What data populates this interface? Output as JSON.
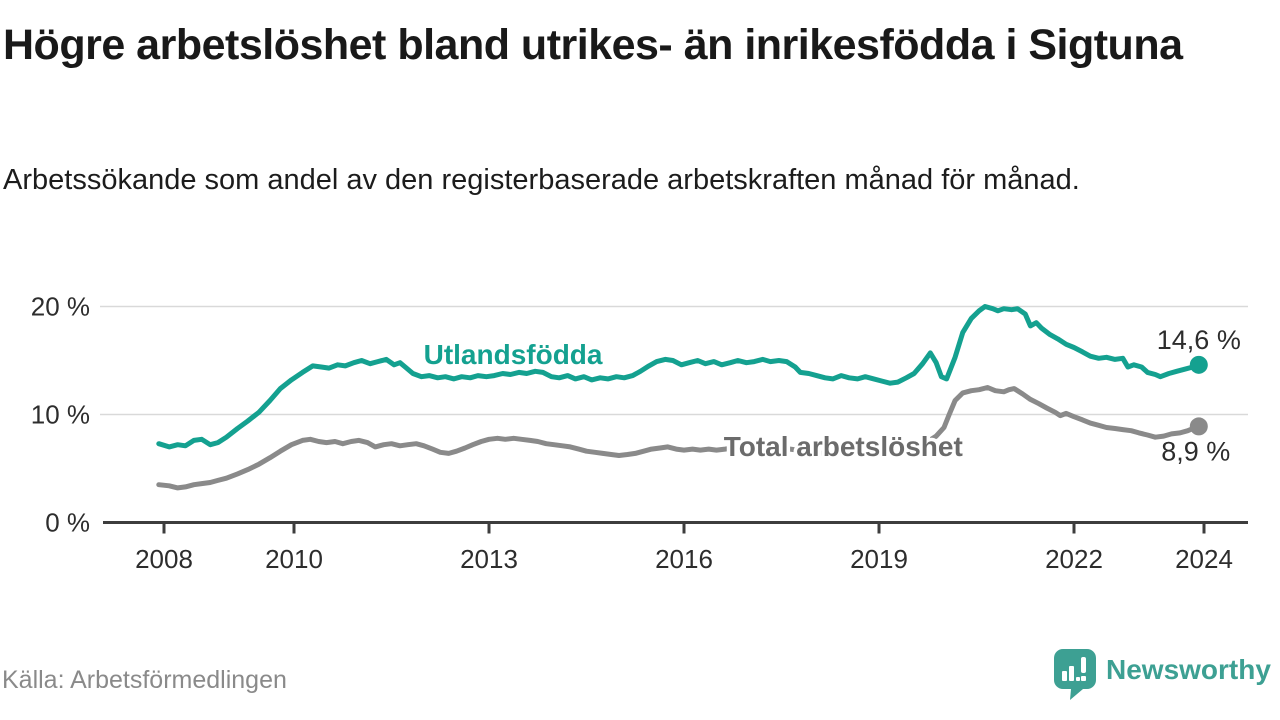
{
  "footer": {
    "brand": "Newsworthy"
  },
  "colors": {
    "accent_teal": "#14a190",
    "series_gray": "#8a8a8a",
    "brand_teal": "#3da093",
    "axis": "#3d3d3d",
    "grid": "#d9d9d9",
    "text_dark": "#2d2d2d"
  },
  "chart_data": {
    "type": "line",
    "title": "Högre arbetslöshet bland utrikes- än inrikesfödda i Sigtuna",
    "subtitle": "Arbetssökande som andel av den registerbaserade arbetskraften månad för månad.",
    "source": "Källa: Arbetsförmedlingen",
    "legend_position": "inline-labels",
    "x_axis": {
      "range": [
        2007.6,
        2024.8
      ],
      "grid": false,
      "ticks": [
        {
          "value": 2008,
          "label": "2008"
        },
        {
          "value": 2010,
          "label": "2010"
        },
        {
          "value": 2013,
          "label": "2013"
        },
        {
          "value": 2016,
          "label": "2016"
        },
        {
          "value": 2019,
          "label": "2019"
        },
        {
          "value": 2022,
          "label": "2022"
        },
        {
          "value": 2024,
          "label": "2024"
        }
      ]
    },
    "y_axis": {
      "range": [
        0,
        21.8
      ],
      "grid": true,
      "unit": "%",
      "ticks": [
        {
          "value": 0,
          "label": "0 %"
        },
        {
          "value": 10,
          "label": "10 %"
        },
        {
          "value": 20,
          "label": "20 %"
        }
      ]
    },
    "series": [
      {
        "name": "Utlandsfödda",
        "color": "#14a190",
        "label_color": "#14a190",
        "line_width": 5,
        "end_dot": true,
        "end_label": "14,6 %",
        "end_value": 14.6,
        "end_label_position": "above",
        "label_anchor": {
          "year": 2013.37,
          "value": 15.6
        },
        "points": [
          [
            2007.92,
            7.3
          ],
          [
            2008.08,
            7.0
          ],
          [
            2008.21,
            7.2
          ],
          [
            2008.33,
            7.1
          ],
          [
            2008.46,
            7.6
          ],
          [
            2008.58,
            7.7
          ],
          [
            2008.71,
            7.2
          ],
          [
            2008.83,
            7.4
          ],
          [
            2008.96,
            7.9
          ],
          [
            2009.13,
            8.7
          ],
          [
            2009.29,
            9.4
          ],
          [
            2009.46,
            10.2
          ],
          [
            2009.63,
            11.3
          ],
          [
            2009.79,
            12.4
          ],
          [
            2009.96,
            13.2
          ],
          [
            2010.13,
            13.9
          ],
          [
            2010.29,
            14.5
          ],
          [
            2010.42,
            14.4
          ],
          [
            2010.54,
            14.3
          ],
          [
            2010.67,
            14.6
          ],
          [
            2010.79,
            14.5
          ],
          [
            2010.92,
            14.8
          ],
          [
            2011.04,
            15.0
          ],
          [
            2011.17,
            14.7
          ],
          [
            2011.29,
            14.9
          ],
          [
            2011.42,
            15.1
          ],
          [
            2011.54,
            14.6
          ],
          [
            2011.63,
            14.8
          ],
          [
            2011.71,
            14.4
          ],
          [
            2011.83,
            13.8
          ],
          [
            2011.96,
            13.5
          ],
          [
            2012.08,
            13.6
          ],
          [
            2012.21,
            13.4
          ],
          [
            2012.33,
            13.5
          ],
          [
            2012.46,
            13.3
          ],
          [
            2012.58,
            13.5
          ],
          [
            2012.71,
            13.4
          ],
          [
            2012.83,
            13.6
          ],
          [
            2012.96,
            13.5
          ],
          [
            2013.08,
            13.6
          ],
          [
            2013.21,
            13.8
          ],
          [
            2013.33,
            13.7
          ],
          [
            2013.46,
            13.9
          ],
          [
            2013.58,
            13.8
          ],
          [
            2013.71,
            14.0
          ],
          [
            2013.83,
            13.9
          ],
          [
            2013.96,
            13.5
          ],
          [
            2014.08,
            13.4
          ],
          [
            2014.21,
            13.6
          ],
          [
            2014.33,
            13.3
          ],
          [
            2014.46,
            13.5
          ],
          [
            2014.58,
            13.2
          ],
          [
            2014.71,
            13.4
          ],
          [
            2014.83,
            13.3
          ],
          [
            2014.96,
            13.5
          ],
          [
            2015.08,
            13.4
          ],
          [
            2015.21,
            13.6
          ],
          [
            2015.33,
            14.0
          ],
          [
            2015.46,
            14.5
          ],
          [
            2015.58,
            14.9
          ],
          [
            2015.71,
            15.1
          ],
          [
            2015.83,
            15.0
          ],
          [
            2015.96,
            14.6
          ],
          [
            2016.08,
            14.8
          ],
          [
            2016.21,
            15.0
          ],
          [
            2016.33,
            14.7
          ],
          [
            2016.46,
            14.9
          ],
          [
            2016.58,
            14.6
          ],
          [
            2016.71,
            14.8
          ],
          [
            2016.83,
            15.0
          ],
          [
            2016.96,
            14.8
          ],
          [
            2017.08,
            14.9
          ],
          [
            2017.21,
            15.1
          ],
          [
            2017.33,
            14.9
          ],
          [
            2017.46,
            15.0
          ],
          [
            2017.58,
            14.9
          ],
          [
            2017.71,
            14.4
          ],
          [
            2017.79,
            13.9
          ],
          [
            2017.92,
            13.8
          ],
          [
            2018.04,
            13.6
          ],
          [
            2018.17,
            13.4
          ],
          [
            2018.29,
            13.3
          ],
          [
            2018.42,
            13.6
          ],
          [
            2018.54,
            13.4
          ],
          [
            2018.67,
            13.3
          ],
          [
            2018.79,
            13.5
          ],
          [
            2018.92,
            13.3
          ],
          [
            2019.04,
            13.1
          ],
          [
            2019.17,
            12.9
          ],
          [
            2019.29,
            13.0
          ],
          [
            2019.42,
            13.4
          ],
          [
            2019.54,
            13.8
          ],
          [
            2019.67,
            14.7
          ],
          [
            2019.79,
            15.7
          ],
          [
            2019.88,
            14.8
          ],
          [
            2019.96,
            13.5
          ],
          [
            2020.04,
            13.3
          ],
          [
            2020.17,
            15.3
          ],
          [
            2020.29,
            17.6
          ],
          [
            2020.42,
            18.9
          ],
          [
            2020.54,
            19.6
          ],
          [
            2020.63,
            20.0
          ],
          [
            2020.75,
            19.8
          ],
          [
            2020.83,
            19.6
          ],
          [
            2020.92,
            19.8
          ],
          [
            2021.04,
            19.7
          ],
          [
            2021.13,
            19.8
          ],
          [
            2021.25,
            19.3
          ],
          [
            2021.33,
            18.2
          ],
          [
            2021.42,
            18.5
          ],
          [
            2021.5,
            18.0
          ],
          [
            2021.63,
            17.4
          ],
          [
            2021.75,
            17.0
          ],
          [
            2021.88,
            16.5
          ],
          [
            2022.0,
            16.2
          ],
          [
            2022.13,
            15.8
          ],
          [
            2022.25,
            15.4
          ],
          [
            2022.38,
            15.2
          ],
          [
            2022.5,
            15.3
          ],
          [
            2022.63,
            15.1
          ],
          [
            2022.75,
            15.2
          ],
          [
            2022.83,
            14.4
          ],
          [
            2022.92,
            14.6
          ],
          [
            2023.04,
            14.4
          ],
          [
            2023.13,
            13.9
          ],
          [
            2023.25,
            13.7
          ],
          [
            2023.33,
            13.5
          ],
          [
            2023.46,
            13.8
          ],
          [
            2023.58,
            14.0
          ],
          [
            2023.71,
            14.2
          ],
          [
            2023.83,
            14.4
          ],
          [
            2023.92,
            14.6
          ]
        ]
      },
      {
        "name": "Total arbetslöshet",
        "color": "#8a8a8a",
        "label_color": "#6b6b6b",
        "line_width": 5,
        "end_dot": true,
        "end_label": "8,9 %",
        "end_value": 8.9,
        "end_label_position": "below",
        "label_anchor": {
          "year": 2018.45,
          "value": 7.08
        },
        "points": [
          [
            2007.92,
            3.5
          ],
          [
            2008.08,
            3.4
          ],
          [
            2008.21,
            3.2
          ],
          [
            2008.33,
            3.3
          ],
          [
            2008.46,
            3.5
          ],
          [
            2008.58,
            3.6
          ],
          [
            2008.71,
            3.7
          ],
          [
            2008.83,
            3.9
          ],
          [
            2008.96,
            4.1
          ],
          [
            2009.13,
            4.5
          ],
          [
            2009.29,
            4.9
          ],
          [
            2009.46,
            5.4
          ],
          [
            2009.63,
            6.0
          ],
          [
            2009.79,
            6.6
          ],
          [
            2009.96,
            7.2
          ],
          [
            2010.13,
            7.6
          ],
          [
            2010.25,
            7.7
          ],
          [
            2010.38,
            7.5
          ],
          [
            2010.5,
            7.4
          ],
          [
            2010.63,
            7.5
          ],
          [
            2010.75,
            7.3
          ],
          [
            2010.88,
            7.5
          ],
          [
            2011.0,
            7.6
          ],
          [
            2011.13,
            7.4
          ],
          [
            2011.25,
            7.0
          ],
          [
            2011.38,
            7.2
          ],
          [
            2011.5,
            7.3
          ],
          [
            2011.63,
            7.1
          ],
          [
            2011.75,
            7.2
          ],
          [
            2011.88,
            7.3
          ],
          [
            2012.0,
            7.1
          ],
          [
            2012.13,
            6.8
          ],
          [
            2012.25,
            6.5
          ],
          [
            2012.38,
            6.4
          ],
          [
            2012.5,
            6.6
          ],
          [
            2012.63,
            6.9
          ],
          [
            2012.75,
            7.2
          ],
          [
            2012.88,
            7.5
          ],
          [
            2013.0,
            7.7
          ],
          [
            2013.13,
            7.8
          ],
          [
            2013.25,
            7.7
          ],
          [
            2013.38,
            7.8
          ],
          [
            2013.5,
            7.7
          ],
          [
            2013.63,
            7.6
          ],
          [
            2013.75,
            7.5
          ],
          [
            2013.88,
            7.3
          ],
          [
            2014.0,
            7.2
          ],
          [
            2014.13,
            7.1
          ],
          [
            2014.25,
            7.0
          ],
          [
            2014.38,
            6.8
          ],
          [
            2014.5,
            6.6
          ],
          [
            2014.63,
            6.5
          ],
          [
            2014.75,
            6.4
          ],
          [
            2014.88,
            6.3
          ],
          [
            2015.0,
            6.2
          ],
          [
            2015.13,
            6.3
          ],
          [
            2015.25,
            6.4
          ],
          [
            2015.38,
            6.6
          ],
          [
            2015.5,
            6.8
          ],
          [
            2015.63,
            6.9
          ],
          [
            2015.75,
            7.0
          ],
          [
            2015.88,
            6.8
          ],
          [
            2016.0,
            6.7
          ],
          [
            2016.13,
            6.8
          ],
          [
            2016.25,
            6.7
          ],
          [
            2016.38,
            6.8
          ],
          [
            2016.5,
            6.7
          ],
          [
            2016.63,
            6.8
          ],
          [
            2016.75,
            6.9
          ],
          [
            2016.88,
            6.8
          ],
          [
            2017.0,
            6.9
          ],
          [
            2017.13,
            7.0
          ],
          [
            2017.25,
            6.9
          ],
          [
            2017.38,
            7.0
          ],
          [
            2017.5,
            6.9
          ],
          [
            2017.63,
            6.8
          ],
          [
            2017.75,
            6.7
          ],
          [
            2017.88,
            6.6
          ],
          [
            2018.0,
            6.5
          ],
          [
            2018.13,
            6.4
          ],
          [
            2018.25,
            6.5
          ],
          [
            2018.38,
            6.4
          ],
          [
            2018.5,
            6.5
          ],
          [
            2018.63,
            6.4
          ],
          [
            2018.75,
            6.5
          ],
          [
            2018.88,
            6.6
          ],
          [
            2019.0,
            6.5
          ],
          [
            2019.13,
            6.6
          ],
          [
            2019.25,
            6.7
          ],
          [
            2019.38,
            6.8
          ],
          [
            2019.5,
            7.0
          ],
          [
            2019.63,
            7.2
          ],
          [
            2019.75,
            7.5
          ],
          [
            2019.88,
            8.0
          ],
          [
            2020.0,
            8.8
          ],
          [
            2020.08,
            10.0
          ],
          [
            2020.17,
            11.3
          ],
          [
            2020.29,
            12.0
          ],
          [
            2020.42,
            12.2
          ],
          [
            2020.54,
            12.3
          ],
          [
            2020.67,
            12.5
          ],
          [
            2020.79,
            12.2
          ],
          [
            2020.92,
            12.1
          ],
          [
            2021.0,
            12.3
          ],
          [
            2021.08,
            12.4
          ],
          [
            2021.21,
            11.9
          ],
          [
            2021.33,
            11.4
          ],
          [
            2021.46,
            11.0
          ],
          [
            2021.58,
            10.6
          ],
          [
            2021.71,
            10.2
          ],
          [
            2021.79,
            9.9
          ],
          [
            2021.88,
            10.1
          ],
          [
            2022.0,
            9.8
          ],
          [
            2022.13,
            9.5
          ],
          [
            2022.25,
            9.2
          ],
          [
            2022.38,
            9.0
          ],
          [
            2022.5,
            8.8
          ],
          [
            2022.63,
            8.7
          ],
          [
            2022.75,
            8.6
          ],
          [
            2022.88,
            8.5
          ],
          [
            2023.0,
            8.3
          ],
          [
            2023.13,
            8.1
          ],
          [
            2023.25,
            7.9
          ],
          [
            2023.38,
            8.0
          ],
          [
            2023.5,
            8.2
          ],
          [
            2023.63,
            8.3
          ],
          [
            2023.75,
            8.5
          ],
          [
            2023.83,
            8.7
          ],
          [
            2023.92,
            8.9
          ]
        ]
      }
    ]
  }
}
